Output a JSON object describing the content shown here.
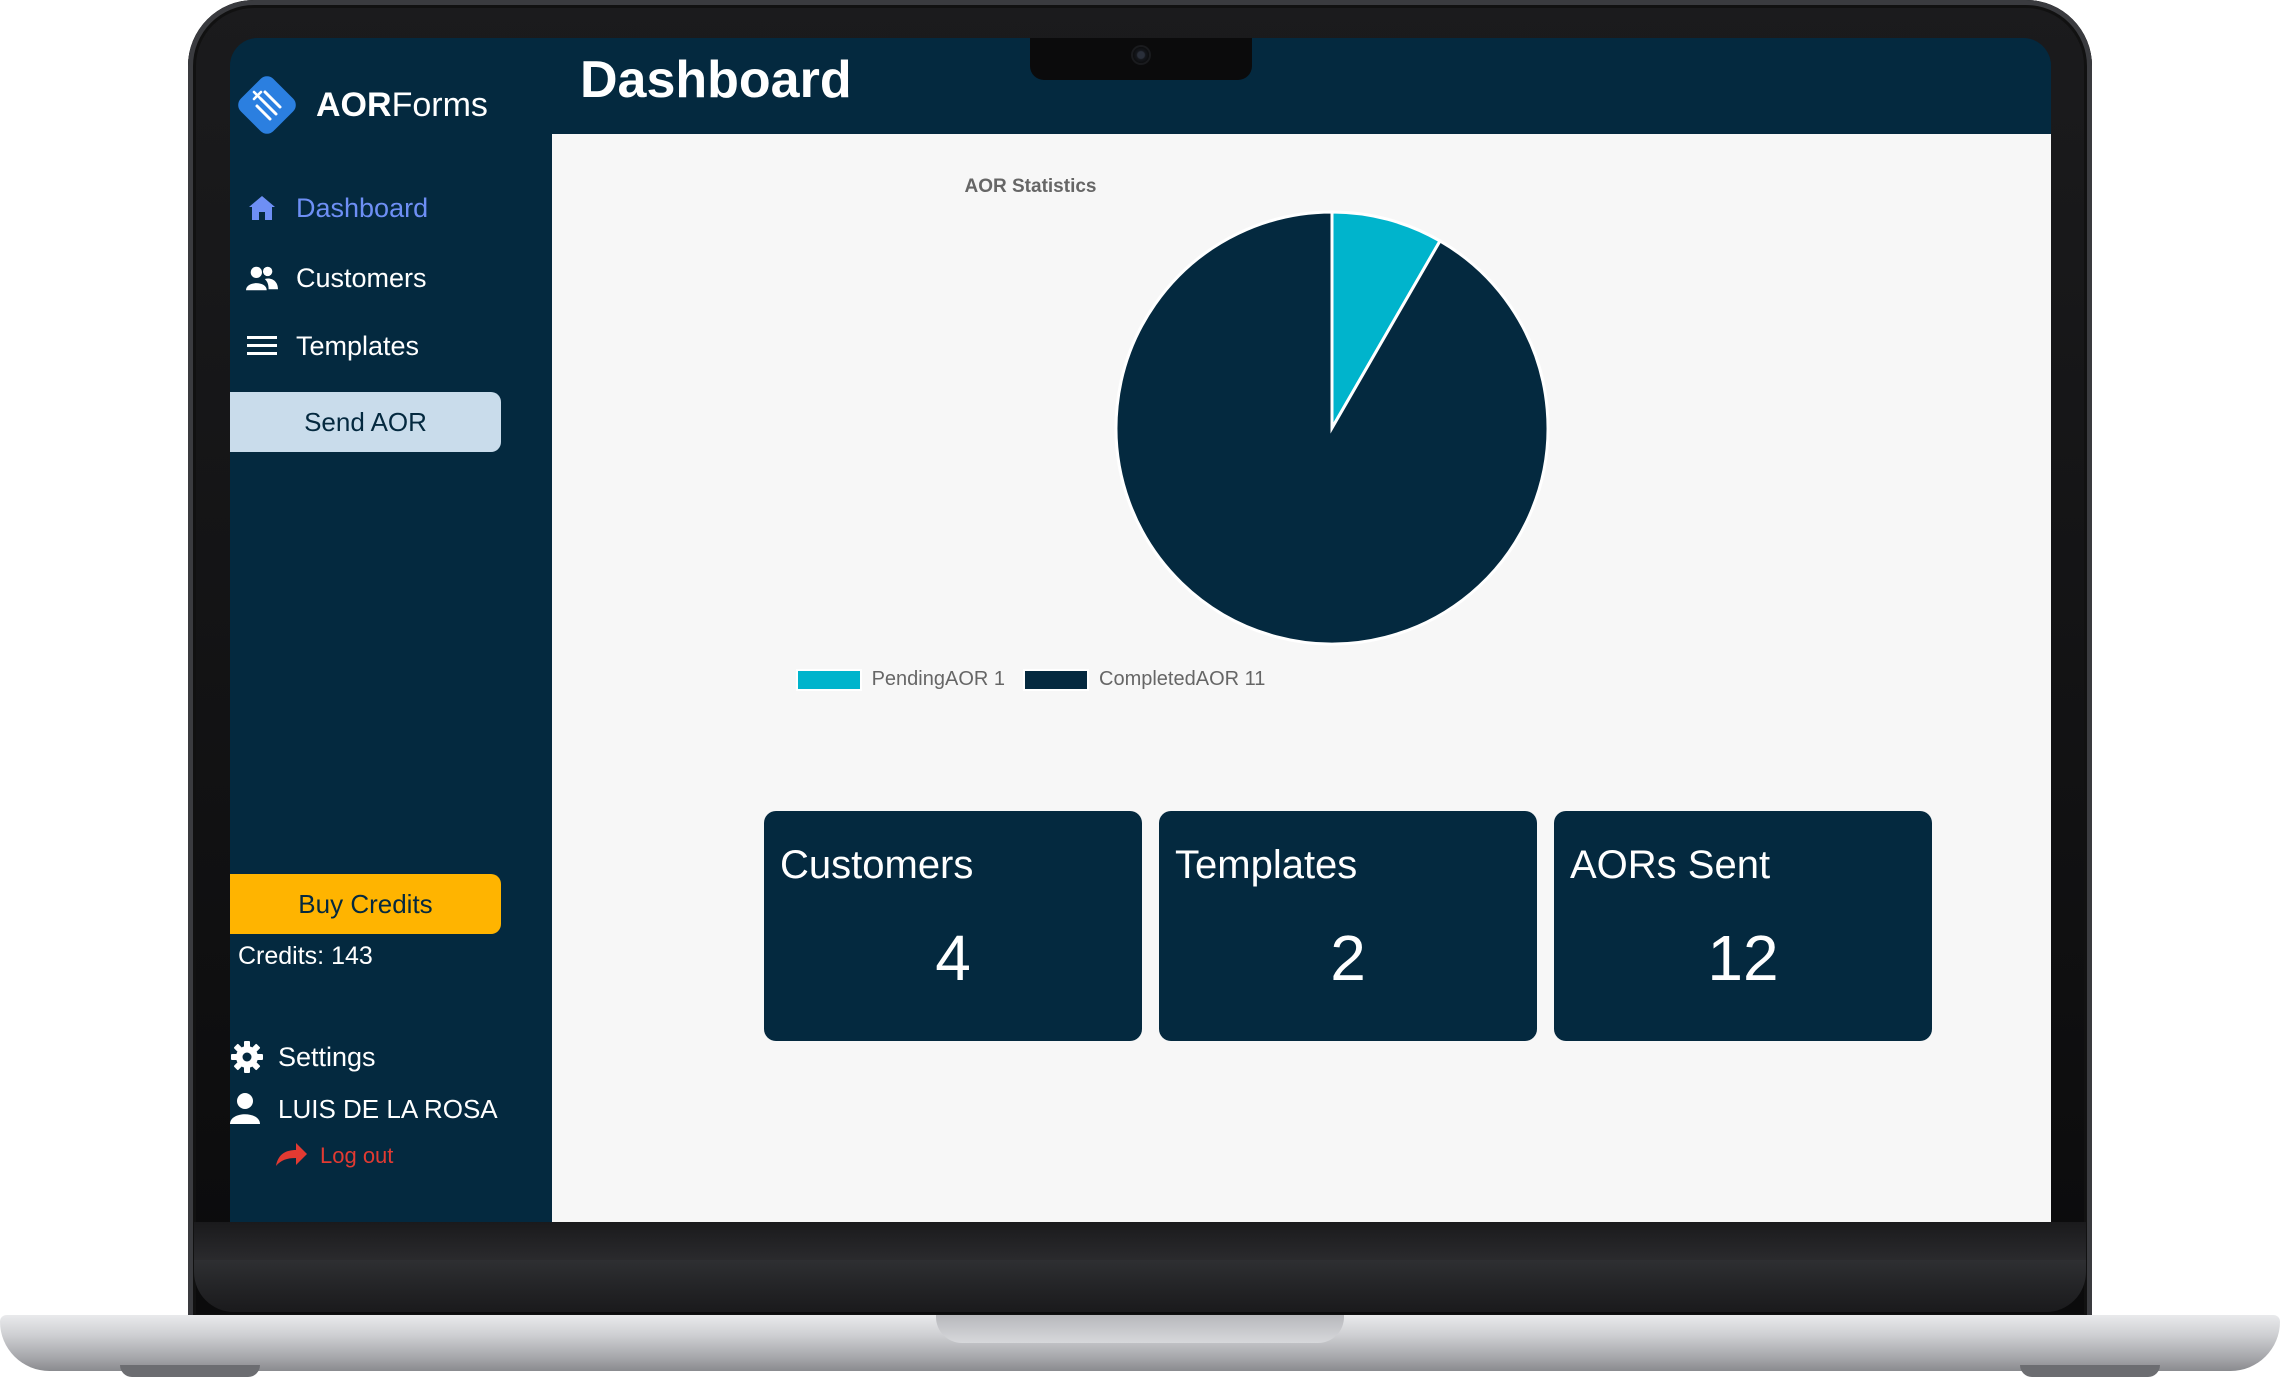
{
  "app": {
    "brand_strong": "AOR",
    "brand_light": "Forms"
  },
  "sidebar": {
    "items": [
      {
        "label": "Dashboard",
        "icon": "home-icon",
        "active": true
      },
      {
        "label": "Customers",
        "icon": "users-icon"
      },
      {
        "label": "Templates",
        "icon": "list-icon"
      }
    ],
    "send_label": "Send AOR",
    "buy_label": "Buy Credits",
    "credits_text": "Credits: 143",
    "settings_label": "Settings",
    "user_name": "LUIS DE LA ROSA",
    "logout_label": "Log out"
  },
  "header": {
    "title": "Dashboard"
  },
  "chart_data": {
    "type": "pie",
    "title": "AOR Statistics",
    "categories": [
      "PendingAOR",
      "CompletedAOR"
    ],
    "values": [
      1,
      11
    ],
    "legend_labels": [
      "PendingAOR 1",
      "CompletedAOR 11"
    ],
    "colors": [
      "#00b4cc",
      "#04293f"
    ],
    "legend_position": "bottom"
  },
  "cards": [
    {
      "title": "Customers",
      "value": "4"
    },
    {
      "title": "Templates",
      "value": "2"
    },
    {
      "title": "AORs Sent",
      "value": "12"
    }
  ],
  "colors": {
    "primary": "#04293f",
    "accent_active": "#6e8ff5",
    "send_button": "#c9dceb",
    "buy_button": "#ffb400",
    "logout": "#e23a32",
    "background": "#f7f7f7"
  }
}
